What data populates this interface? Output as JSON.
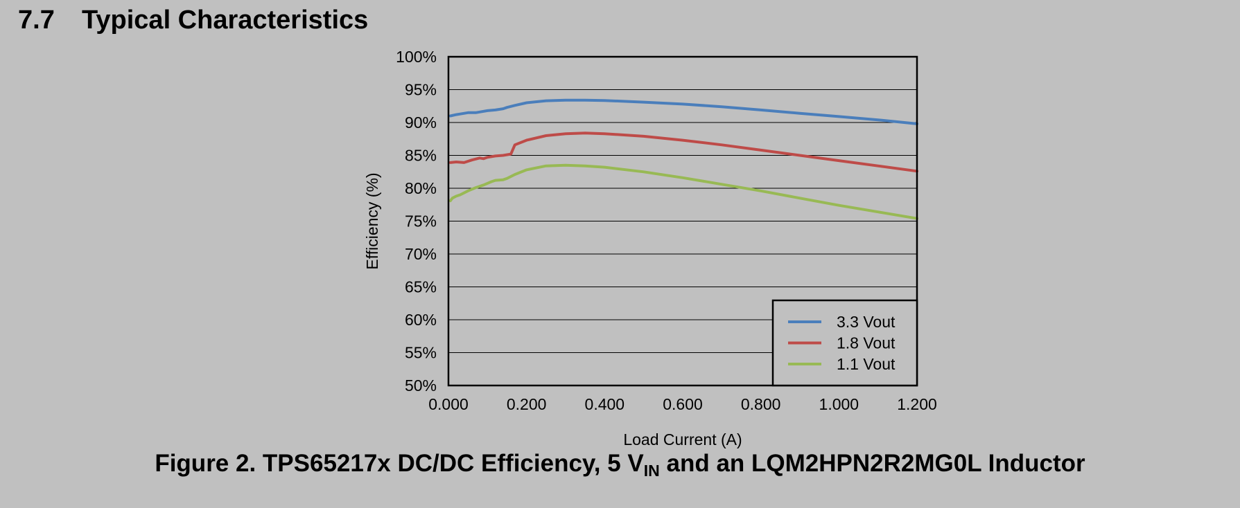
{
  "section": {
    "number": "7.7",
    "title": "Typical Characteristics"
  },
  "caption": {
    "prefix": "Figure 2. TPS65217x DC/DC Efficiency, 5 V",
    "subscript": "IN",
    "suffix": " and an LQM2HPN2R2MG0L Inductor"
  },
  "colors": {
    "background": "#c0c0c0",
    "series_3v3": "#4a7ebb",
    "series_1v8": "#be4b48",
    "series_1v1": "#98b954"
  },
  "chart_data": {
    "type": "line",
    "xlabel": "Load Current (A)",
    "ylabel": "Efficiency (%)",
    "xlim": [
      0,
      1.2
    ],
    "ylim": [
      50,
      100
    ],
    "x_ticks": [
      "0.000",
      "0.200",
      "0.400",
      "0.600",
      "0.800",
      "1.000",
      "1.200"
    ],
    "x_tick_values": [
      0,
      0.2,
      0.4,
      0.6,
      0.8,
      1.0,
      1.2
    ],
    "y_ticks": [
      "50%",
      "55%",
      "60%",
      "65%",
      "70%",
      "75%",
      "80%",
      "85%",
      "90%",
      "95%",
      "100%"
    ],
    "y_tick_values": [
      50,
      55,
      60,
      65,
      70,
      75,
      80,
      85,
      90,
      95,
      100
    ],
    "grid": "horizontal",
    "legend_position": "bottom-right",
    "series": [
      {
        "name": "3.3 Vout",
        "color": "#4a7ebb",
        "x": [
          0.005,
          0.02,
          0.03,
          0.05,
          0.07,
          0.08,
          0.1,
          0.12,
          0.14,
          0.15,
          0.17,
          0.2,
          0.25,
          0.3,
          0.35,
          0.4,
          0.5,
          0.6,
          0.7,
          0.8,
          0.9,
          1.0,
          1.1,
          1.2
        ],
        "values": [
          91.0,
          91.2,
          91.3,
          91.5,
          91.5,
          91.6,
          91.8,
          91.9,
          92.1,
          92.3,
          92.6,
          93.0,
          93.3,
          93.4,
          93.4,
          93.35,
          93.1,
          92.8,
          92.4,
          91.9,
          91.4,
          90.9,
          90.4,
          89.8
        ]
      },
      {
        "name": "1.8 Vout",
        "color": "#be4b48",
        "x": [
          0.005,
          0.02,
          0.04,
          0.06,
          0.08,
          0.09,
          0.1,
          0.12,
          0.14,
          0.16,
          0.17,
          0.2,
          0.25,
          0.3,
          0.35,
          0.4,
          0.5,
          0.6,
          0.7,
          0.8,
          0.9,
          1.0,
          1.1,
          1.2
        ],
        "values": [
          83.9,
          84.0,
          83.9,
          84.3,
          84.6,
          84.5,
          84.7,
          84.9,
          85.0,
          85.2,
          86.6,
          87.3,
          88.0,
          88.3,
          88.4,
          88.3,
          87.9,
          87.3,
          86.6,
          85.8,
          85.0,
          84.2,
          83.4,
          82.6
        ]
      },
      {
        "name": "1.1 Vout",
        "color": "#98b954",
        "x": [
          0.005,
          0.01,
          0.02,
          0.03,
          0.05,
          0.07,
          0.09,
          0.11,
          0.12,
          0.14,
          0.15,
          0.17,
          0.2,
          0.25,
          0.3,
          0.35,
          0.4,
          0.5,
          0.6,
          0.7,
          0.8,
          0.9,
          1.0,
          1.1,
          1.2
        ],
        "values": [
          78.1,
          78.5,
          78.8,
          79.0,
          79.6,
          80.1,
          80.5,
          81.0,
          81.2,
          81.3,
          81.5,
          82.1,
          82.8,
          83.4,
          83.5,
          83.4,
          83.2,
          82.5,
          81.6,
          80.6,
          79.6,
          78.5,
          77.4,
          76.4,
          75.4
        ]
      }
    ]
  }
}
